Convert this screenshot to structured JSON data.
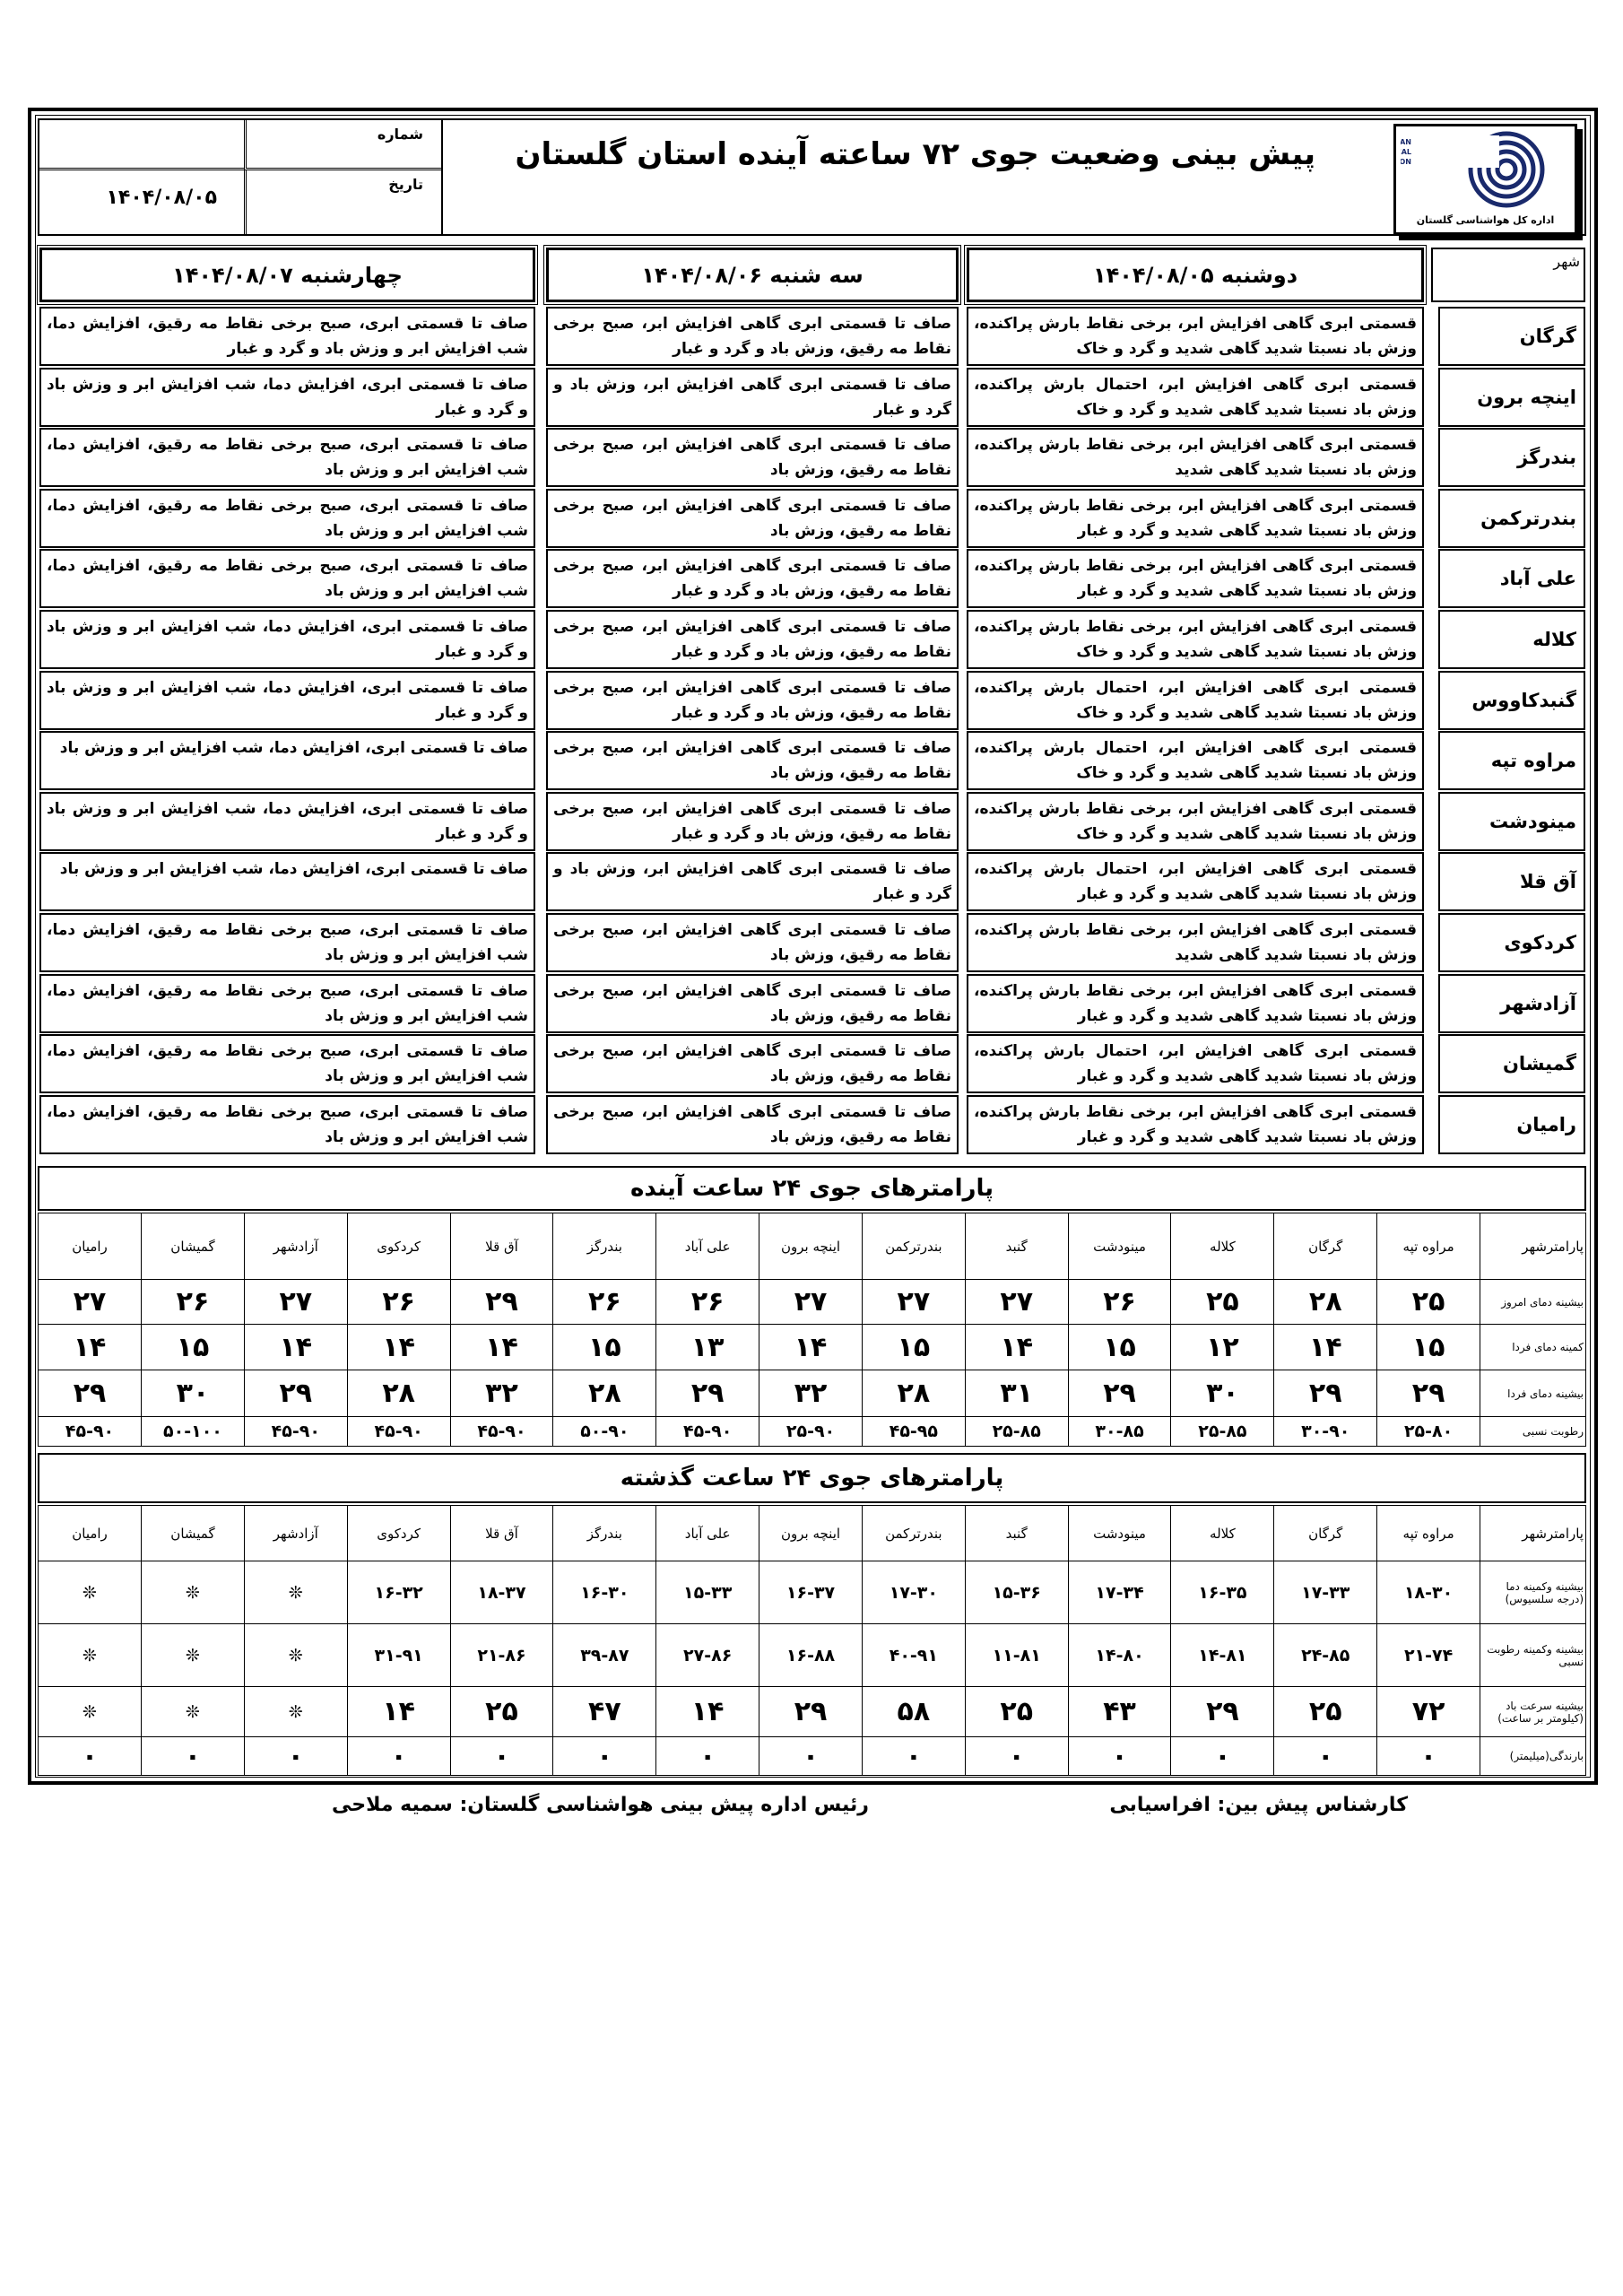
{
  "header": {
    "title": "پیش بینی وضعیت جوی ۷۲ ساعته آینده استان گلستان",
    "number_label": "شماره",
    "number_value": "",
    "date_label": "تاریخ",
    "date_value": "۱۴۰۴/۰۸/۰۵",
    "logo_text": "IRANIAN METEOROLOGICAL ORGANIZATION",
    "logo_caption": "اداره کل هواشناسی گلستان",
    "logo_color": "#1a2a6c"
  },
  "forecast": {
    "city_header": "شهر",
    "days": [
      "دوشنبه ۱۴۰۴/۰۸/۰۵",
      "سه شنبه ۱۴۰۴/۰۸/۰۶",
      "چهارشنبه ۱۴۰۴/۰۸/۰۷"
    ],
    "rows": [
      {
        "city": "گرگان",
        "d1": "قسمتی ابری گاهی افزایش ابر، برخی نقاط بارش پراکنده، وزش باد نسبتا شدید گاهی شدید و گرد و خاک",
        "d2": "صاف تا قسمتی ابری گاهی افزایش ابر، صبح برخی نقاط مه رقیق، وزش باد و گرد و غبار",
        "d3": "صاف تا قسمتی ابری، صبح برخی نقاط مه رقیق، افزایش دما، شب افزایش ابر و وزش باد و گرد و غبار"
      },
      {
        "city": "اینچه برون",
        "d1": "قسمتی ابری گاهی افزایش ابر، احتمال بارش پراکنده، وزش باد نسبتا شدید گاهی شدید و گرد و خاک",
        "d2": "صاف تا قسمتی ابری گاهی افزایش ابر، وزش باد و گرد و غبار",
        "d3": "صاف تا قسمتی ابری، افزایش دما، شب افزایش ابر و وزش باد و گرد و غبار"
      },
      {
        "city": "بندرگز",
        "d1": "قسمتی ابری گاهی افزایش ابر، برخی نقاط بارش پراکنده، وزش باد نسبتا شدید گاهی شدید",
        "d2": "صاف تا قسمتی ابری گاهی افزایش ابر، صبح برخی نقاط مه رقیق، وزش باد",
        "d3": "صاف تا قسمتی ابری، صبح برخی نقاط مه رقیق، افزایش دما، شب افزایش ابر و وزش باد"
      },
      {
        "city": "بندرترکمن",
        "d1": "قسمتی ابری گاهی افزایش ابر، برخی نقاط بارش پراکنده، وزش باد نسبتا شدید گاهی شدید و گرد و غبار",
        "d2": "صاف تا قسمتی ابری گاهی افزایش ابر، صبح برخی نقاط مه رقیق، وزش باد",
        "d3": "صاف تا قسمتی ابری، صبح برخی نقاط مه رقیق، افزایش دما، شب افزایش ابر و وزش باد"
      },
      {
        "city": "علی آباد",
        "d1": "قسمتی ابری گاهی افزایش ابر، برخی نقاط بارش پراکنده، وزش باد نسبتا شدید گاهی شدید و گرد و غبار",
        "d2": "صاف تا قسمتی ابری گاهی افزایش ابر، صبح برخی نقاط مه رقیق، وزش باد و گرد و غبار",
        "d3": "صاف تا قسمتی ابری، صبح برخی نقاط مه رقیق، افزایش دما، شب افزایش ابر و وزش باد"
      },
      {
        "city": "کلاله",
        "d1": "قسمتی ابری گاهی افزایش ابر، برخی نقاط بارش پراکنده، وزش باد نسبتا شدید گاهی شدید و گرد و خاک",
        "d2": "صاف تا قسمتی ابری گاهی افزایش ابر، صبح برخی نقاط مه رقیق، وزش باد و گرد و غبار",
        "d3": "صاف تا قسمتی ابری، افزایش دما، شب افزایش ابر و وزش باد و گرد و غبار"
      },
      {
        "city": "گنبدکاووس",
        "d1": "قسمتی ابری گاهی افزایش ابر، احتمال بارش پراکنده، وزش باد نسبتا شدید گاهی شدید و گرد و خاک",
        "d2": "صاف تا قسمتی ابری گاهی افزایش ابر، صبح برخی نقاط مه رقیق، وزش باد و گرد و غبار",
        "d3": "صاف تا قسمتی ابری، افزایش دما، شب افزایش ابر و وزش باد و گرد و غبار"
      },
      {
        "city": "مراوه تپه",
        "d1": "قسمتی ابری گاهی افزایش ابر، احتمال بارش پراکنده، وزش باد نسبتا شدید گاهی شدید و گرد و خاک",
        "d2": "صاف تا قسمتی ابری گاهی افزایش ابر، صبح برخی نقاط مه رقیق، وزش باد",
        "d3": "صاف تا قسمتی ابری، افزایش دما، شب افزایش ابر و وزش باد"
      },
      {
        "city": "مینودشت",
        "d1": "قسمتی ابری گاهی افزایش ابر، برخی نقاط بارش پراکنده، وزش باد نسبتا شدید گاهی شدید و گرد و خاک",
        "d2": "صاف تا قسمتی ابری گاهی افزایش ابر، صبح برخی نقاط مه رقیق، وزش باد و گرد و غبار",
        "d3": "صاف تا قسمتی ابری، افزایش دما، شب افزایش ابر و وزش باد و گرد و غبار"
      },
      {
        "city": "آق قلا",
        "d1": "قسمتی ابری گاهی افزایش ابر، احتمال بارش پراکنده، وزش باد نسبتا شدید گاهی شدید و گرد و غبار",
        "d2": "صاف تا قسمتی ابری گاهی افزایش ابر، وزش باد و گرد و غبار",
        "d3": "صاف تا قسمتی ابری، افزایش دما، شب افزایش ابر و وزش باد"
      },
      {
        "city": "کردکوی",
        "d1": "قسمتی ابری گاهی افزایش ابر، برخی نقاط بارش پراکنده، وزش باد نسبتا شدید گاهی شدید",
        "d2": "صاف تا قسمتی ابری گاهی افزایش ابر، صبح برخی نقاط مه رقیق، وزش باد",
        "d3": "صاف تا قسمتی ابری، صبح برخی نقاط مه رقیق، افزایش دما، شب افزایش ابر و وزش باد"
      },
      {
        "city": "آزادشهر",
        "d1": "قسمتی ابری گاهی افزایش ابر، برخی نقاط بارش پراکنده، وزش باد نسبتا شدید گاهی شدید و گرد و غبار",
        "d2": "صاف تا قسمتی ابری گاهی افزایش ابر، صبح برخی نقاط مه رقیق، وزش باد",
        "d3": "صاف تا قسمتی ابری، صبح برخی نقاط مه رقیق، افزایش دما، شب افزایش ابر و وزش باد"
      },
      {
        "city": "گمیشان",
        "d1": "قسمتی ابری گاهی افزایش ابر، احتمال بارش پراکنده، وزش باد نسبتا شدید گاهی شدید و گرد و غبار",
        "d2": "صاف تا قسمتی ابری گاهی افزایش ابر، صبح برخی نقاط مه رقیق، وزش باد",
        "d3": "صاف تا قسمتی ابری، صبح برخی نقاط مه رقیق، افزایش دما، شب افزایش ابر و وزش باد"
      },
      {
        "city": "رامیان",
        "d1": "قسمتی ابری گاهی افزایش ابر، برخی نقاط بارش پراکنده، وزش باد نسبتا شدید گاهی شدید و گرد و غبار",
        "d2": "صاف تا قسمتی ابری گاهی افزایش ابر، صبح برخی نقاط مه رقیق، وزش باد",
        "d3": "صاف تا قسمتی ابری، صبح برخی نقاط مه رقیق، افزایش دما، شب افزایش ابر و وزش باد"
      }
    ]
  },
  "next24": {
    "title": "پارامترهای جوی ۲۴ ساعت آینده",
    "columns": [
      "پارامترشهر",
      "مراوه تپه",
      "گرگان",
      "کلاله",
      "مینودشت",
      "گنبد",
      "بندرترکمن",
      "اینچه برون",
      "علی آباد",
      "بندرگز",
      "آق قلا",
      "کردکوی",
      "آزادشهر",
      "گمیشان",
      "رامیان"
    ],
    "rows": [
      {
        "label": "بیشینه دمای امروز",
        "values": [
          "۲۵",
          "۲۸",
          "۲۵",
          "۲۶",
          "۲۷",
          "۲۷",
          "۲۷",
          "۲۶",
          "۲۶",
          "۲۹",
          "۲۶",
          "۲۷",
          "۲۶",
          "۲۷"
        ]
      },
      {
        "label": "کمینه دمای فردا",
        "values": [
          "۱۵",
          "۱۴",
          "۱۲",
          "۱۵",
          "۱۴",
          "۱۵",
          "۱۴",
          "۱۳",
          "۱۵",
          "۱۴",
          "۱۴",
          "۱۴",
          "۱۵",
          "۱۴"
        ]
      },
      {
        "label": "بیشینه دمای فردا",
        "values": [
          "۲۹",
          "۲۹",
          "۳۰",
          "۲۹",
          "۳۱",
          "۲۸",
          "۳۲",
          "۲۹",
          "۲۸",
          "۳۲",
          "۲۸",
          "۲۹",
          "۳۰",
          "۲۹"
        ]
      },
      {
        "label": "رطوبت نسبی",
        "values": [
          "۲۵-۸۰",
          "۳۰-۹۰",
          "۲۵-۸۵",
          "۳۰-۸۵",
          "۲۵-۸۵",
          "۴۵-۹۵",
          "۲۵-۹۰",
          "۴۵-۹۰",
          "۵۰-۹۰",
          "۴۵-۹۰",
          "۴۵-۹۰",
          "۴۵-۹۰",
          "۵۰-۱۰۰",
          "۴۵-۹۰"
        ]
      }
    ]
  },
  "past24": {
    "title": "پارامترهای جوی ۲۴ ساعت گذشته",
    "columns": [
      "پارامترشهر",
      "مراوه تپه",
      "گرگان",
      "کلاله",
      "مینودشت",
      "گنبد",
      "بندرترکمن",
      "اینچه برون",
      "علی آباد",
      "بندرگز",
      "آق قلا",
      "کردکوی",
      "آزادشهر",
      "گمیشان",
      "رامیان"
    ],
    "rows": [
      {
        "label": "بیشینه وکمینه دما (درجه سلسیوس)",
        "values": [
          "۱۸-۳۰",
          "۱۷-۳۳",
          "۱۶-۳۵",
          "۱۷-۳۴",
          "۱۵-۳۶",
          "۱۷-۳۰",
          "۱۶-۳۷",
          "۱۵-۳۳",
          "۱۶-۳۰",
          "۱۸-۳۷",
          "۱۶-۳۲",
          "❊",
          "❊",
          "❊"
        ]
      },
      {
        "label": "بیشینه وکمینه رطوبت نسبی",
        "values": [
          "۲۱-۷۴",
          "۲۴-۸۵",
          "۱۴-۸۱",
          "۱۴-۸۰",
          "۱۱-۸۱",
          "۴۰-۹۱",
          "۱۶-۸۸",
          "۲۷-۸۶",
          "۳۹-۸۷",
          "۲۱-۸۶",
          "۳۱-۹۱",
          "❊",
          "❊",
          "❊"
        ]
      },
      {
        "label": "بیشینه سرعت باد (کیلومتر بر ساعت)",
        "values": [
          "۷۲",
          "۲۵",
          "۲۹",
          "۴۳",
          "۲۵",
          "۵۸",
          "۲۹",
          "۱۴",
          "۴۷",
          "۲۵",
          "۱۴",
          "❊",
          "❊",
          "❊"
        ]
      },
      {
        "label": "بارندگی(میلیمتر)",
        "values": [
          "۰",
          "۰",
          "۰",
          "۰",
          "۰",
          "۰",
          "۰",
          "۰",
          "۰",
          "۰",
          "۰",
          "۰",
          "۰",
          "۰"
        ]
      }
    ]
  },
  "footer": {
    "forecaster": "کارشناس پیش بین: افراسیابی",
    "head": "رئیس اداره پیش بینی هواشناسی گلستان: سمیه ملاحی"
  }
}
